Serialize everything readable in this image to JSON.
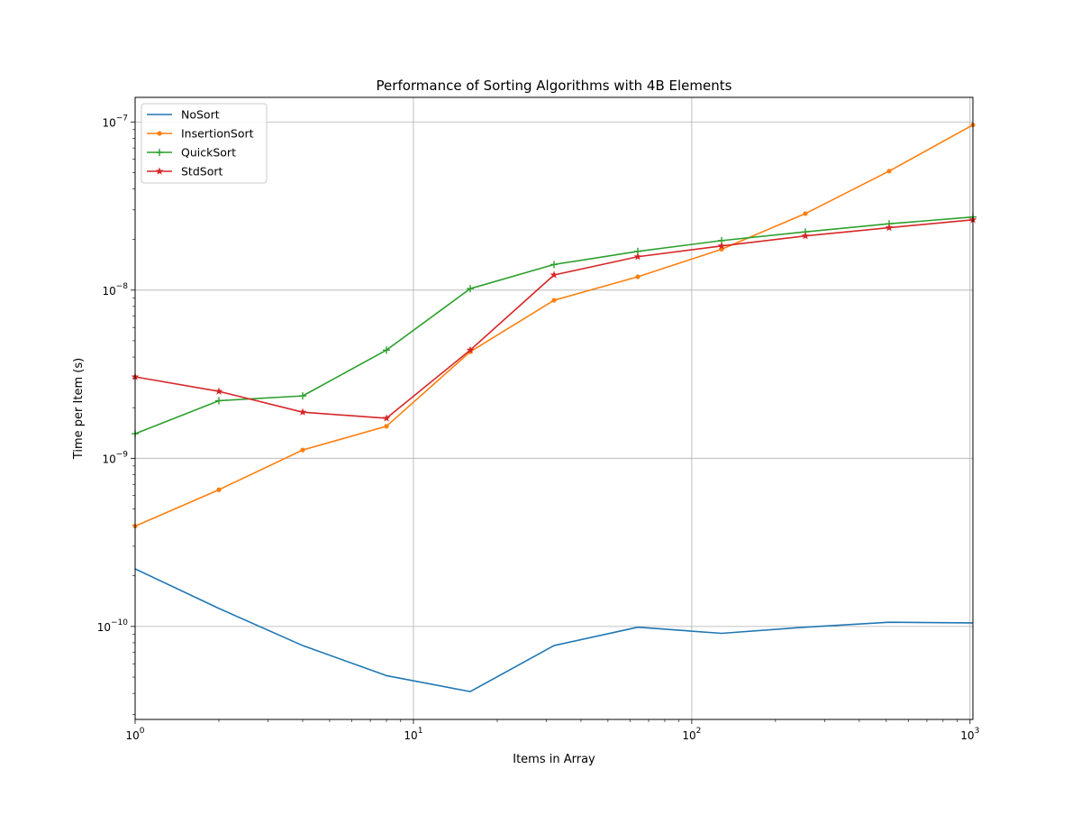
{
  "chart_data": {
    "type": "line",
    "title": "Performance of Sorting Algorithms with 4B Elements",
    "xlabel": "Items in Array",
    "ylabel": "Time per Item (s)",
    "xscale": "log",
    "yscale": "log",
    "xlim": [
      1,
      1024
    ],
    "ylim": [
      2.8e-11,
      1.4e-07
    ],
    "grid": true,
    "legend_position": "upper-left",
    "x_ticks": [
      {
        "value": 1,
        "base": "10",
        "exp": "0"
      },
      {
        "value": 10,
        "base": "10",
        "exp": "1"
      },
      {
        "value": 100,
        "base": "10",
        "exp": "2"
      },
      {
        "value": 1000,
        "base": "10",
        "exp": "3"
      }
    ],
    "y_ticks": [
      {
        "value": 1e-10,
        "base": "10",
        "exp": "−10"
      },
      {
        "value": 1e-09,
        "base": "10",
        "exp": "−9"
      },
      {
        "value": 1e-08,
        "base": "10",
        "exp": "−8"
      },
      {
        "value": 1e-07,
        "base": "10",
        "exp": "−7"
      }
    ],
    "x": [
      1,
      2,
      4,
      8,
      16,
      32,
      64,
      128,
      256,
      512,
      1024
    ],
    "series": [
      {
        "name": "NoSort",
        "color": "#1f77b4",
        "marker": "none",
        "values": [
          2.2e-10,
          1.28e-10,
          7.7e-11,
          5.1e-11,
          4.1e-11,
          7.7e-11,
          9.9e-11,
          9.1e-11,
          9.9e-11,
          1.06e-10,
          1.05e-10
        ]
      },
      {
        "name": "InsertionSort",
        "color": "#ff7f0e",
        "marker": "dot",
        "values": [
          3.95e-10,
          6.5e-10,
          1.12e-09,
          1.55e-09,
          4.3e-09,
          8.7e-09,
          1.2e-08,
          1.75e-08,
          2.85e-08,
          5.1e-08,
          9.6e-08
        ]
      },
      {
        "name": "QuickSort",
        "color": "#2ca02c",
        "marker": "plus",
        "values": [
          1.4e-09,
          2.2e-09,
          2.35e-09,
          4.4e-09,
          1.02e-08,
          1.42e-08,
          1.7e-08,
          1.97e-08,
          2.22e-08,
          2.48e-08,
          2.72e-08
        ]
      },
      {
        "name": "StdSort",
        "color": "#d62728",
        "marker": "star",
        "values": [
          3.05e-09,
          2.5e-09,
          1.88e-09,
          1.73e-09,
          4.4e-09,
          1.23e-08,
          1.58e-08,
          1.83e-08,
          2.1e-08,
          2.35e-08,
          2.62e-08
        ]
      }
    ]
  }
}
